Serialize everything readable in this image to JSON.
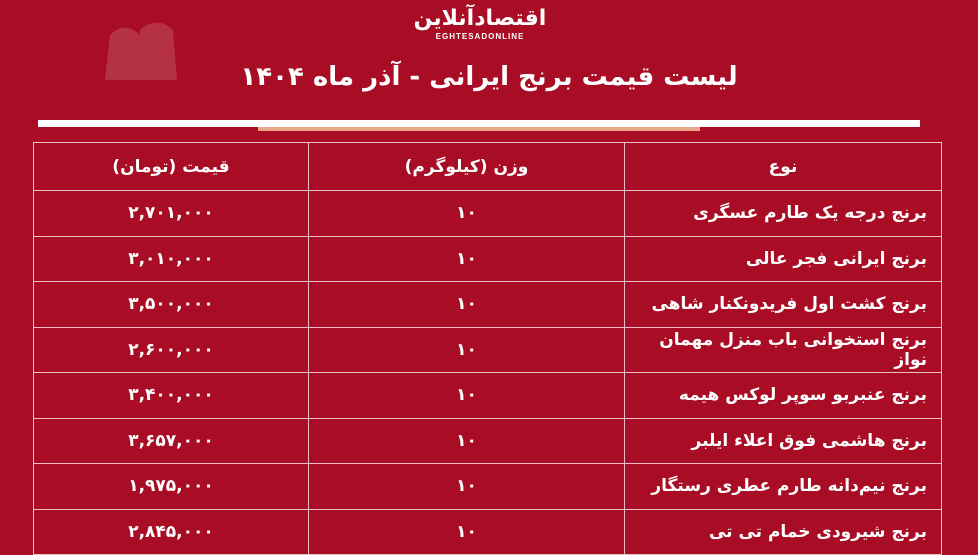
{
  "logo": {
    "fa": "اقتصادآنلاین",
    "en": "EGHTESADONLINE"
  },
  "title": "لیست قیمت برنج ایرانی - آذر ماه ۱۴۰۴",
  "table": {
    "headers": [
      "نوع",
      "وزن (کیلوگرم)",
      "قیمت (تومان)"
    ],
    "rows": [
      [
        "برنج درجه یک طارم عسگری",
        "۱۰",
        "۲,۷۰۱,۰۰۰"
      ],
      [
        "برنج ایرانی فجر عالی",
        "۱۰",
        "۳,۰۱۰,۰۰۰"
      ],
      [
        "برنج کشت اول فریدونکنار شاهی",
        "۱۰",
        "۳,۵۰۰,۰۰۰"
      ],
      [
        "برنج استخوانی باب منزل مهمان نواز",
        "۱۰",
        "۲,۶۰۰,۰۰۰"
      ],
      [
        "برنج عنبربو سوپر لوکس هیمه",
        "۱۰",
        "۳,۴۰۰,۰۰۰"
      ],
      [
        "برنج هاشمی فوق اعلاء ایلبر",
        "۱۰",
        "۳,۶۵۷,۰۰۰"
      ],
      [
        "برنج نیم‌دانه طارم عطری رستگار",
        "۱۰",
        "۱,۹۷۵,۰۰۰"
      ],
      [
        "برنج شیرودی خمام تی تی",
        "۱۰",
        "۲,۸۴۵,۰۰۰"
      ]
    ]
  },
  "colors": {
    "background": "#a80d25",
    "accent_line": "#e9a789"
  }
}
